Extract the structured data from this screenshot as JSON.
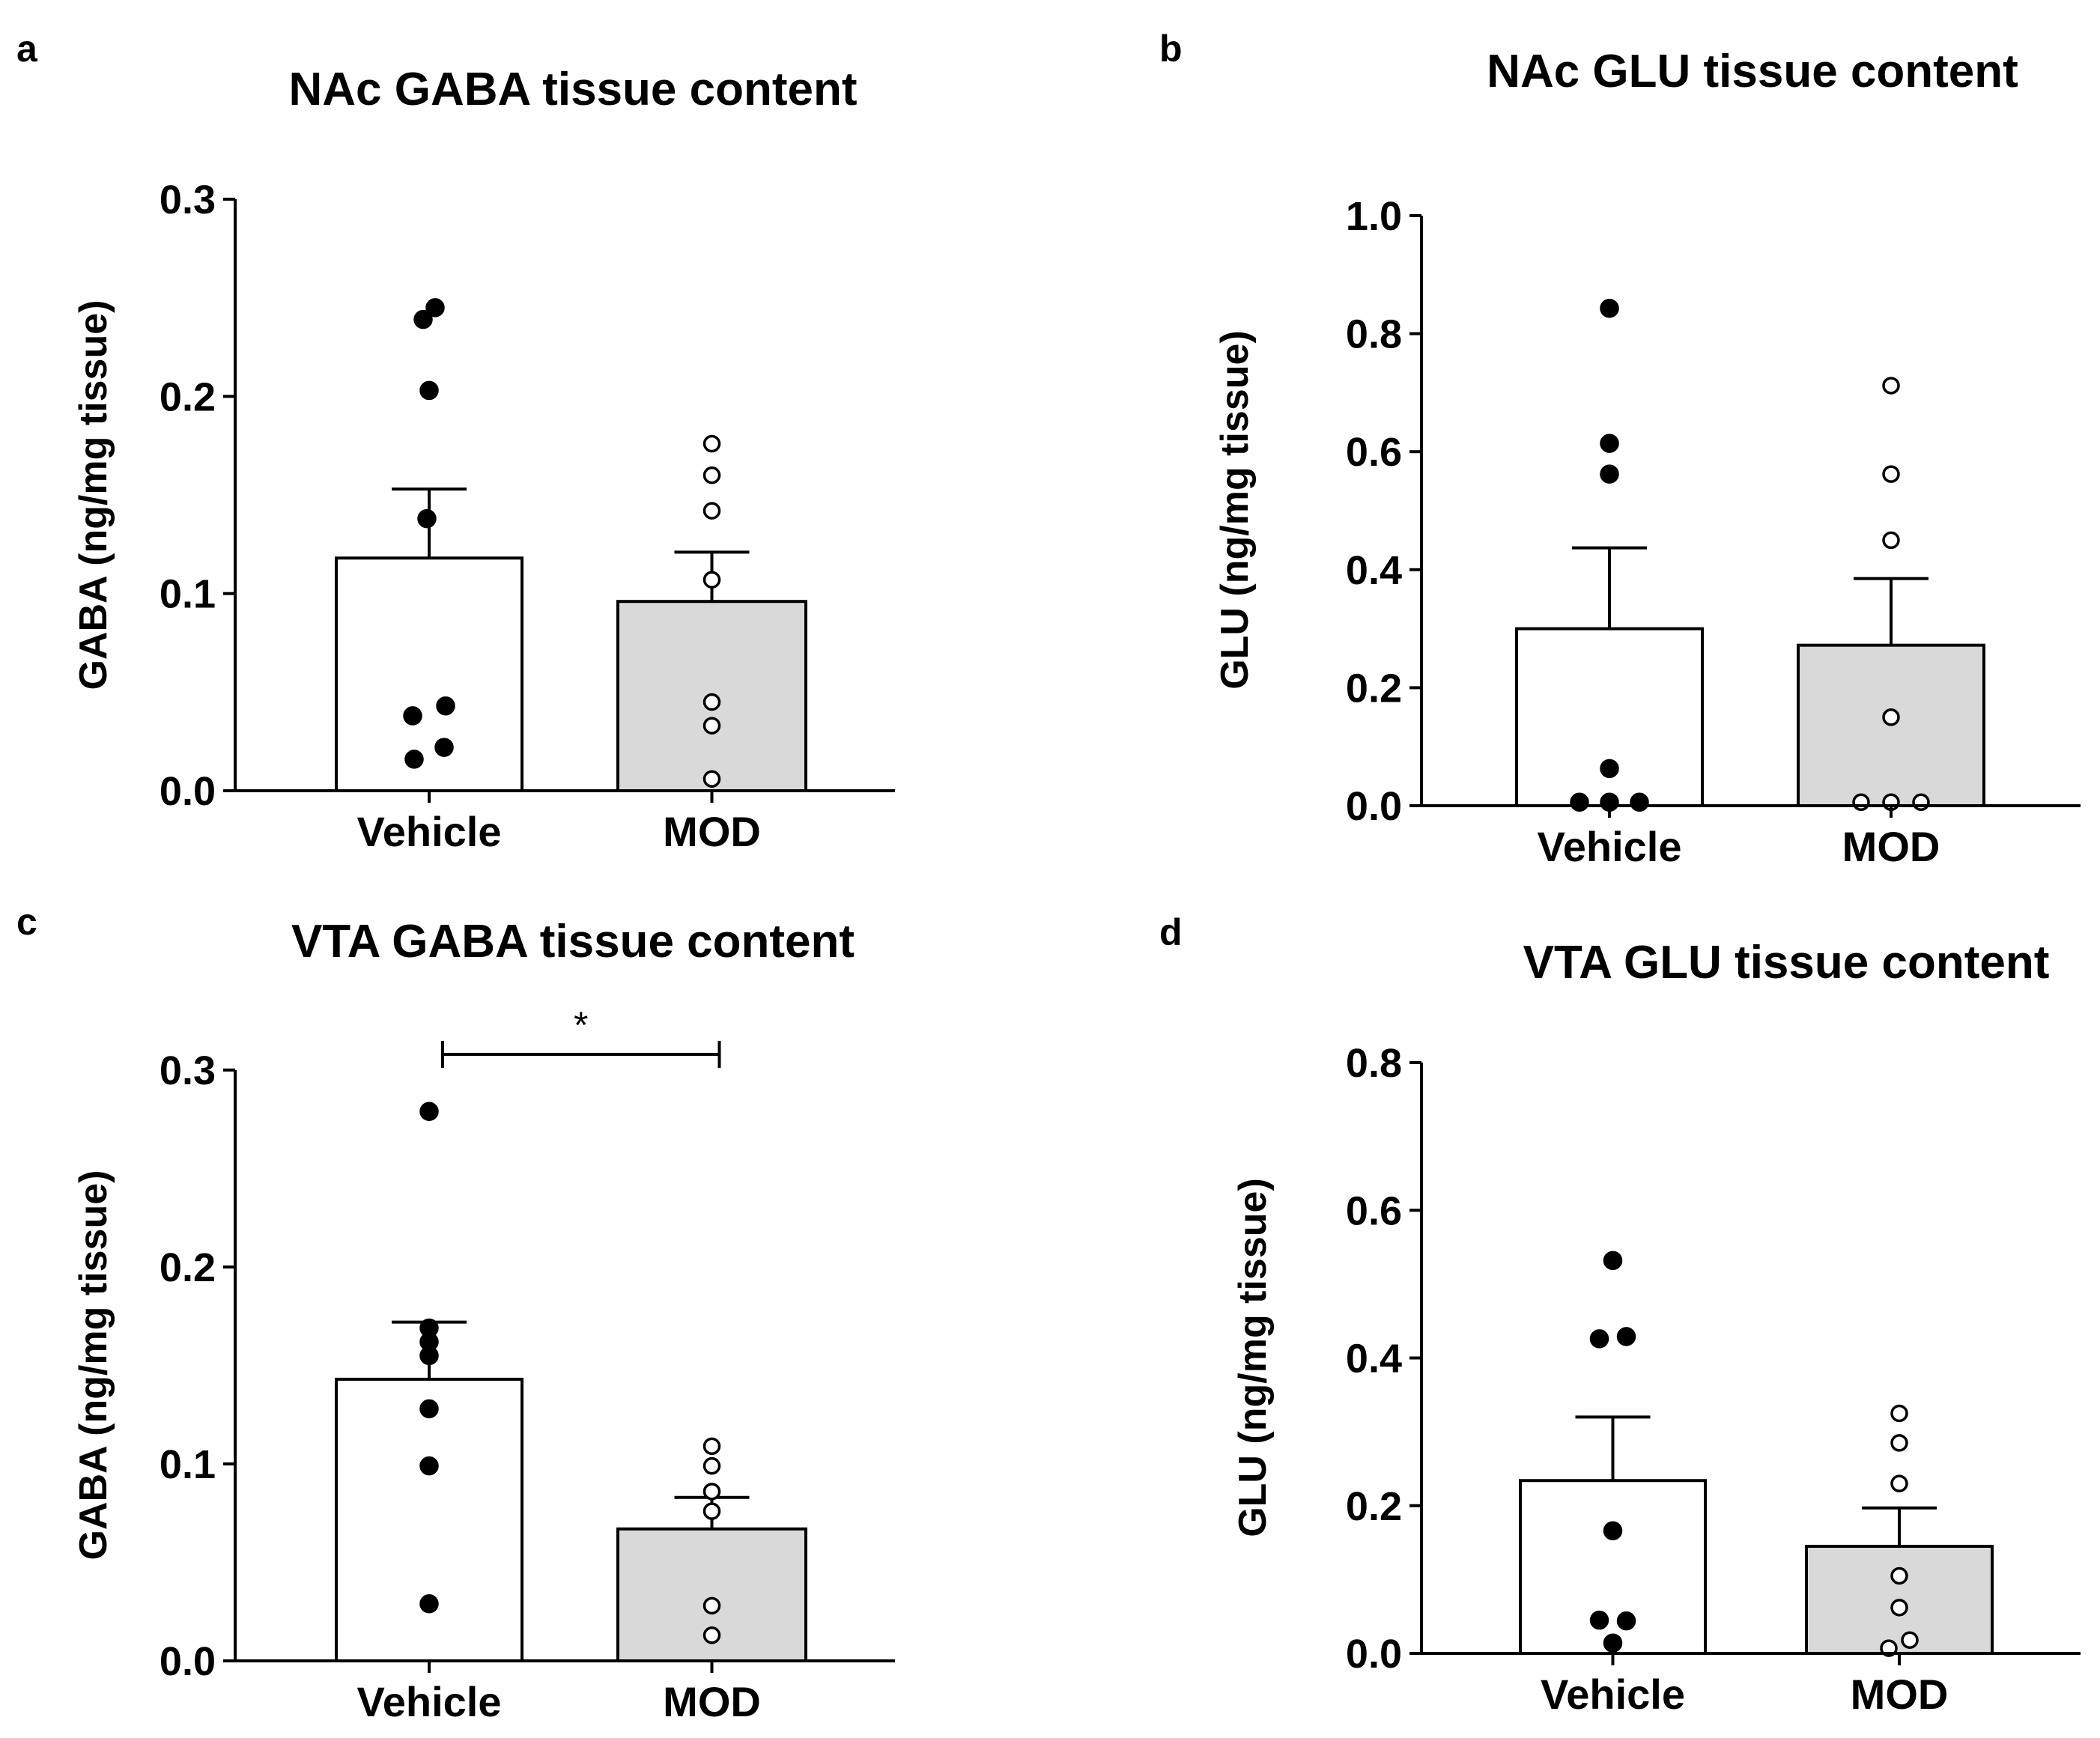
{
  "chart_data": [
    {
      "panel": "a",
      "type": "bar",
      "title": "NAc GABA tissue content",
      "ylabel": "GABA (ng/mg tissue)",
      "xlabel": "",
      "ylim": [
        0,
        0.3
      ],
      "yticks": [
        0.0,
        0.1,
        0.2,
        0.3
      ],
      "ytick_labels": [
        "0.0",
        "0.1",
        "0.2",
        "0.3"
      ],
      "categories": [
        "Vehicle",
        "MOD"
      ],
      "values": [
        0.118,
        0.096
      ],
      "sem": [
        0.035,
        0.025
      ],
      "bar_colors": [
        "#ffffff",
        "#d9d9d9"
      ],
      "points": [
        [
          0.239,
          0.245,
          0.203,
          0.138,
          0.038,
          0.043,
          0.022,
          0.016
        ],
        [
          0.176,
          0.16,
          0.142,
          0.107,
          0.045,
          0.033,
          0.006
        ]
      ],
      "point_styles": [
        "filled",
        "open"
      ]
    },
    {
      "panel": "b",
      "type": "bar",
      "title": "NAc GLU tissue content",
      "ylabel": "GLU (ng/mg tissue)",
      "xlabel": "",
      "ylim": [
        0,
        1.0
      ],
      "yticks": [
        0.0,
        0.2,
        0.4,
        0.6,
        0.8,
        1.0
      ],
      "ytick_labels": [
        "0.0",
        "0.2",
        "0.4",
        "0.6",
        "0.8",
        "1.0"
      ],
      "categories": [
        "Vehicle",
        "MOD"
      ],
      "values": [
        0.3,
        0.272
      ],
      "sem": [
        0.137,
        0.113
      ],
      "bar_colors": [
        "#ffffff",
        "#d9d9d9"
      ],
      "points": [
        [
          0.843,
          0.614,
          0.562,
          0.063,
          0.006,
          0.006,
          0.006
        ],
        [
          0.712,
          0.562,
          0.45,
          0.15,
          0.006,
          0.006,
          0.006
        ]
      ],
      "point_styles": [
        "filled",
        "open"
      ]
    },
    {
      "panel": "c",
      "type": "bar",
      "title": "VTA GABA tissue content",
      "ylabel": "GABA (ng/mg tissue)",
      "xlabel": "",
      "ylim": [
        0,
        0.3
      ],
      "yticks": [
        0.0,
        0.1,
        0.2,
        0.3
      ],
      "ytick_labels": [
        "0.0",
        "0.1",
        "0.2",
        "0.3"
      ],
      "categories": [
        "Vehicle",
        "MOD"
      ],
      "values": [
        0.143,
        0.067
      ],
      "sem": [
        0.029,
        0.016
      ],
      "bar_colors": [
        "#ffffff",
        "#d9d9d9"
      ],
      "points": [
        [
          0.279,
          0.169,
          0.162,
          0.155,
          0.128,
          0.099,
          0.029
        ],
        [
          0.109,
          0.099,
          0.086,
          0.076,
          0.028,
          0.013
        ]
      ],
      "point_styles": [
        "filled",
        "open"
      ],
      "significance": {
        "label": "*",
        "between": [
          0,
          1
        ],
        "y": 0.308
      }
    },
    {
      "panel": "d",
      "type": "bar",
      "title": "VTA GLU tissue content",
      "ylabel": "GLU (ng/mg tissue)",
      "xlabel": "",
      "ylim": [
        0,
        0.8
      ],
      "yticks": [
        0.0,
        0.2,
        0.4,
        0.6,
        0.8
      ],
      "ytick_labels": [
        "0.0",
        "0.2",
        "0.4",
        "0.6",
        "0.8"
      ],
      "categories": [
        "Vehicle",
        "MOD"
      ],
      "values": [
        0.234,
        0.145
      ],
      "sem": [
        0.086,
        0.052
      ],
      "bar_colors": [
        "#ffffff",
        "#d9d9d9"
      ],
      "points": [
        [
          0.532,
          0.426,
          0.429,
          0.166,
          0.045,
          0.044,
          0.014
        ],
        [
          0.325,
          0.285,
          0.23,
          0.105,
          0.062,
          0.007,
          0.018
        ]
      ],
      "point_styles": [
        "filled",
        "open"
      ]
    }
  ]
}
